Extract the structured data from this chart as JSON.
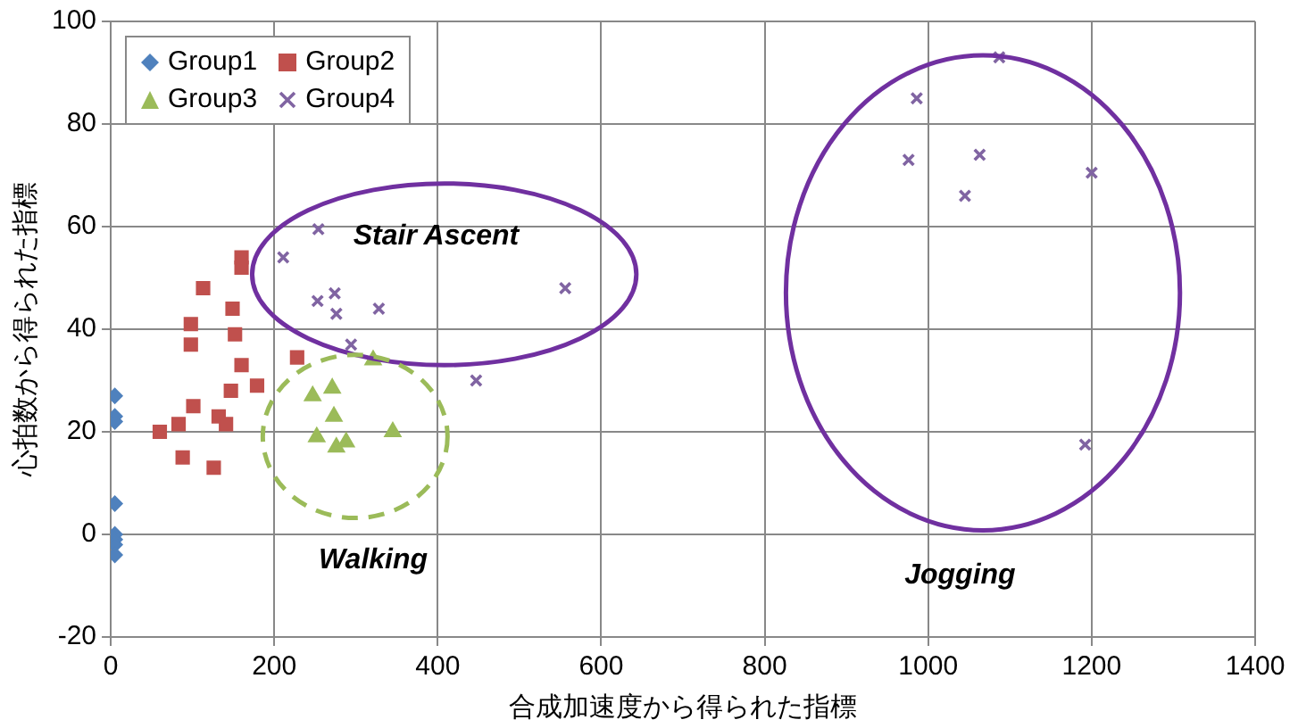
{
  "chart_data": {
    "type": "scatter",
    "xlabel": "合成加速度から得られた指標",
    "ylabel": "心拍数から得られた指標",
    "xlim": [
      0,
      1400
    ],
    "xticks": [
      0,
      200,
      400,
      600,
      800,
      1000,
      1200,
      1400
    ],
    "ylim": [
      -20,
      100
    ],
    "yticks": [
      -20,
      0,
      20,
      40,
      60,
      80,
      100
    ],
    "grid": true,
    "legend": "top left",
    "series": [
      {
        "name": "Group1",
        "color": "#4f81bd",
        "marker": "diamond",
        "x": [
          5,
          5,
          5,
          5,
          5,
          5,
          5,
          5
        ],
        "values": [
          27,
          23,
          22,
          6,
          0,
          -1,
          -2,
          -4
        ]
      },
      {
        "name": "Group2",
        "color": "#c0504d",
        "marker": "square",
        "x": [
          160,
          160,
          113,
          149,
          98,
          98,
          152,
          228,
          160,
          147,
          179,
          101,
          83,
          60,
          132,
          141,
          88,
          126
        ],
        "values": [
          54,
          52,
          48,
          44,
          41,
          37,
          39,
          34.5,
          33,
          28,
          29,
          25,
          21.5,
          20,
          23,
          21.5,
          15,
          13
        ]
      },
      {
        "name": "Group3",
        "color": "#9bbb59",
        "marker": "triangle",
        "x": [
          247,
          271,
          273,
          321,
          252,
          276,
          288,
          345
        ],
        "values": [
          27,
          28.5,
          23,
          34,
          19,
          17,
          18,
          20
        ]
      },
      {
        "name": "Group4",
        "color": "#8064a2",
        "marker": "cross",
        "x": [
          254,
          211,
          556,
          253,
          274,
          276,
          328,
          294,
          447,
          1087,
          986,
          976,
          1063,
          1045,
          1200,
          1192
        ],
        "values": [
          59.5,
          54,
          48,
          45.5,
          47,
          43,
          44,
          37,
          30,
          93,
          85,
          73,
          74,
          66,
          70.5,
          17.5
        ]
      }
    ],
    "annotations": [
      "Stair Ascent",
      "Walking",
      "Jogging"
    ]
  }
}
